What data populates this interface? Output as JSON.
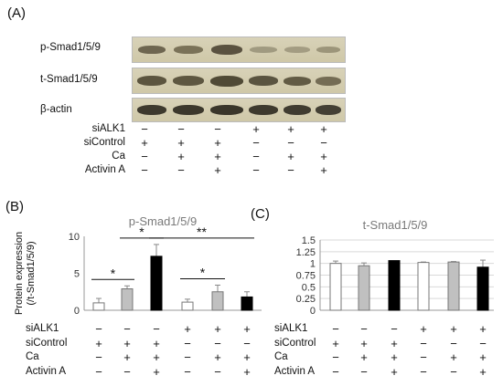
{
  "panelA": {
    "label": "(A)",
    "blots": [
      "p-Smad1/5/9",
      "t-Smad1/5/9",
      "β-actin"
    ],
    "rows": [
      {
        "name": "siALK1",
        "signs": [
          "−",
          "−",
          "−",
          "+",
          "+",
          "+"
        ]
      },
      {
        "name": "siControl",
        "signs": [
          "+",
          "+",
          "+",
          "−",
          "−",
          "−"
        ]
      },
      {
        "name": "Ca",
        "signs": [
          "−",
          "+",
          "+",
          "−",
          "+",
          "+"
        ]
      },
      {
        "name": "Activin A",
        "signs": [
          "−",
          "−",
          "+",
          "−",
          "−",
          "+"
        ]
      }
    ]
  },
  "panelB": {
    "label": "(B)"
  },
  "panelC": {
    "label": "(C)"
  },
  "rowsBC": [
    {
      "name": "siALK1",
      "signs": [
        "−",
        "−",
        "−",
        "+",
        "+",
        "+"
      ]
    },
    {
      "name": "siControl",
      "signs": [
        "+",
        "+",
        "+",
        "−",
        "−",
        "−"
      ]
    },
    {
      "name": "Ca",
      "signs": [
        "−",
        "+",
        "+",
        "−",
        "+",
        "+"
      ]
    },
    {
      "name": "Activin A",
      "signs": [
        "−",
        "−",
        "+",
        "−",
        "−",
        "+"
      ]
    }
  ],
  "colors": {
    "white": "#ffffff",
    "gray": "#c0c0c0",
    "black": "#000000"
  },
  "chart_data": [
    {
      "type": "bar",
      "title": "p-Smad1/5/9",
      "ylabel": "Protein expression (/t-Smad1/5/9)",
      "ylim": [
        0,
        10
      ],
      "yticks": [
        "0",
        "5",
        "10"
      ],
      "values": [
        1.0,
        2.9,
        7.3,
        1.1,
        2.5,
        1.8
      ],
      "errors": [
        0.6,
        0.4,
        1.6,
        0.4,
        0.9,
        0.7
      ],
      "fills": [
        "white",
        "gray",
        "black",
        "white",
        "gray",
        "black"
      ],
      "significance": [
        {
          "from": 0,
          "to": 1,
          "text": "*"
        },
        {
          "from": 1,
          "to": 2,
          "text": "*"
        },
        {
          "from": 2,
          "to": 5,
          "text": "**"
        },
        {
          "from": 3,
          "to": 4,
          "text": "*"
        }
      ],
      "grid": false
    },
    {
      "type": "bar",
      "title": "t-Smad1/5/9",
      "ylim": [
        0,
        1.5
      ],
      "yticks": [
        "0",
        "0.25",
        "0.5",
        "0.75",
        "1",
        "1.25",
        "1.5"
      ],
      "values": [
        1.0,
        0.95,
        1.06,
        1.02,
        1.03,
        0.92
      ],
      "errors": [
        0.05,
        0.06,
        0.0,
        0.01,
        0.01,
        0.15
      ],
      "fills": [
        "white",
        "gray",
        "black",
        "white",
        "gray",
        "black"
      ],
      "grid": true
    }
  ]
}
